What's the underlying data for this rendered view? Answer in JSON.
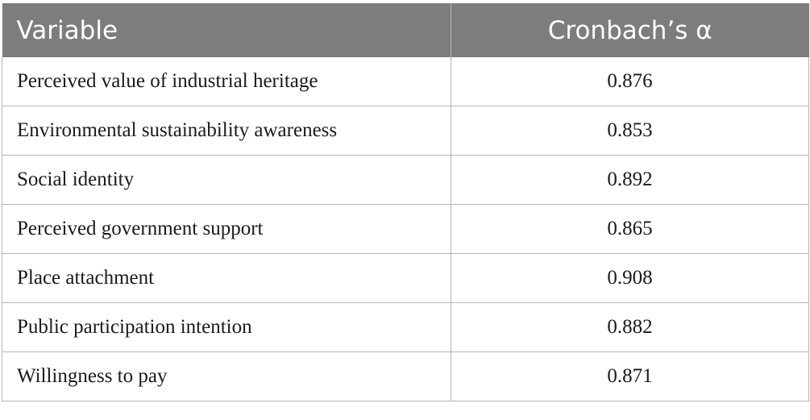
{
  "table": {
    "headers": {
      "variable": "Variable",
      "alpha": "Cronbach’s α"
    },
    "rows": [
      {
        "variable": "Perceived value of industrial heritage",
        "alpha": "0.876"
      },
      {
        "variable": "Environmental sustainability awareness",
        "alpha": "0.853"
      },
      {
        "variable": "Social identity",
        "alpha": "0.892"
      },
      {
        "variable": "Perceived government support",
        "alpha": "0.865"
      },
      {
        "variable": "Place attachment",
        "alpha": "0.908"
      },
      {
        "variable": "Public participation intention",
        "alpha": "0.882"
      },
      {
        "variable": "Willingness to pay",
        "alpha": "0.871"
      }
    ]
  }
}
